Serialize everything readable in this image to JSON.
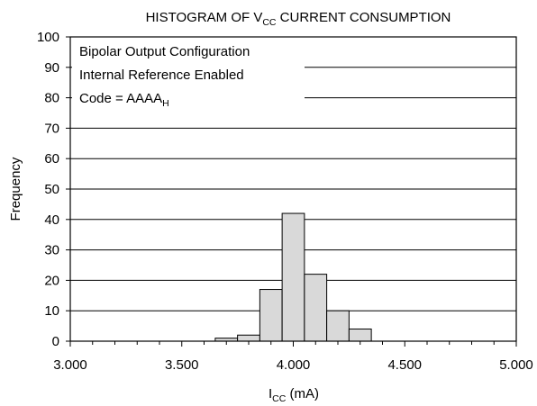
{
  "chart_data": {
    "type": "bar",
    "title": {
      "prefix": "HISTOGRAM OF V",
      "sub": "CC",
      "suffix": " CURRENT CONSUMPTION"
    },
    "xlabel": {
      "prefix": "I",
      "sub": "CC",
      "suffix": " (mA)"
    },
    "ylabel": "Frequency",
    "xlim": [
      3.0,
      5.0
    ],
    "ylim": [
      0,
      100
    ],
    "xticks": [
      "3.000",
      "3.500",
      "4.000",
      "4.500",
      "5.000"
    ],
    "yticks": [
      "0",
      "10",
      "20",
      "30",
      "40",
      "50",
      "60",
      "70",
      "80",
      "90",
      "100"
    ],
    "grid": true,
    "bin_width": 0.1,
    "bins": [
      {
        "start": 3.65,
        "value": 1
      },
      {
        "start": 3.75,
        "value": 2
      },
      {
        "start": 3.85,
        "value": 17
      },
      {
        "start": 3.95,
        "value": 42
      },
      {
        "start": 4.05,
        "value": 22
      },
      {
        "start": 4.15,
        "value": 10
      },
      {
        "start": 4.25,
        "value": 4
      }
    ],
    "annotations": {
      "line1": "Bipolar Output Configuration",
      "line2": "Internal Reference Enabled",
      "line3": {
        "prefix": "Code = AAAA",
        "sub": "H"
      }
    }
  }
}
